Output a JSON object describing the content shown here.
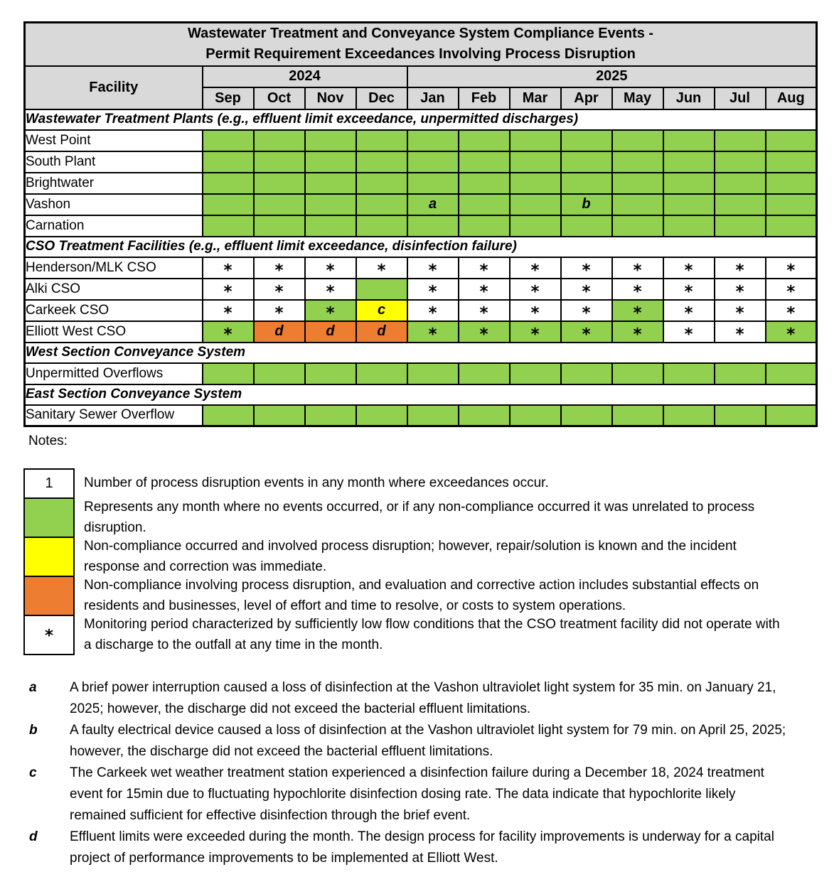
{
  "colors": {
    "green": "#92D050",
    "yellow": "#FFFF00",
    "orange": "#ED7D31",
    "white": "#FFFFFF",
    "header_bg": "#D9D9D9",
    "border": "#000000"
  },
  "table": {
    "title_lines": [
      "Wastewater Treatment and Conveyance System Compliance Events -",
      "Permit Requirement Exceedances Involving Process Disruption"
    ],
    "facility_header": "Facility",
    "year_groups": [
      {
        "label": "2024",
        "span": 4
      },
      {
        "label": "2025",
        "span": 8
      }
    ],
    "months": [
      "Sep",
      "Oct",
      "Nov",
      "Dec",
      "Jan",
      "Feb",
      "Mar",
      "Apr",
      "May",
      "Jun",
      "Jul",
      "Aug"
    ],
    "sections": [
      {
        "header": "Wastewater Treatment Plants (e.g., effluent limit exceedance, unpermitted discharges)",
        "rows": [
          {
            "facility": "West Point",
            "cells": [
              "green",
              "green",
              "green",
              "green",
              "green",
              "green",
              "green",
              "green",
              "green",
              "green",
              "green",
              "green"
            ]
          },
          {
            "facility": "South Plant",
            "cells": [
              "green",
              "green",
              "green",
              "green",
              "green",
              "green",
              "green",
              "green",
              "green",
              "green",
              "green",
              "green"
            ]
          },
          {
            "facility": "Brightwater",
            "cells": [
              "green",
              "green",
              "green",
              "green",
              "green",
              "green",
              "green",
              "green",
              "green",
              "green",
              "green",
              "green"
            ]
          },
          {
            "facility": "Vashon",
            "cells": [
              "green",
              "green",
              "green",
              "green",
              "green:a",
              "green",
              "green",
              "green:b",
              "green",
              "green",
              "green",
              "green"
            ]
          },
          {
            "facility": "Carnation",
            "cells": [
              "green",
              "green",
              "green",
              "green",
              "green",
              "green",
              "green",
              "green",
              "green",
              "green",
              "green",
              "green"
            ]
          }
        ]
      },
      {
        "header": "CSO Treatment Facilities (e.g., effluent limit exceedance, disinfection failure)",
        "rows": [
          {
            "facility": "Henderson/MLK CSO",
            "cells": [
              "white:*",
              "white:*",
              "white:*",
              "white:*",
              "white:*",
              "white:*",
              "white:*",
              "white:*",
              "white:*",
              "white:*",
              "white:*",
              "white:*"
            ]
          },
          {
            "facility": "Alki CSO",
            "cells": [
              "white:*",
              "white:*",
              "white:*",
              "green",
              "white:*",
              "white:*",
              "white:*",
              "white:*",
              "white:*",
              "white:*",
              "white:*",
              "white:*"
            ]
          },
          {
            "facility": "Carkeek CSO",
            "cells": [
              "white:*",
              "white:*",
              "green:*",
              "yellow:c",
              "white:*",
              "white:*",
              "white:*",
              "white:*",
              "green:*",
              "white:*",
              "white:*",
              "white:*"
            ]
          },
          {
            "facility": "Elliott West CSO",
            "cells": [
              "green:*",
              "orange:d",
              "orange:d",
              "orange:d",
              "green:*",
              "green:*",
              "green:*",
              "green:*",
              "green:*",
              "white:*",
              "white:*",
              "green:*"
            ]
          }
        ]
      },
      {
        "header": "West Section Conveyance System",
        "rows": [
          {
            "facility": "Unpermitted Overflows",
            "cells": [
              "green",
              "green",
              "green",
              "green",
              "green",
              "green",
              "green",
              "green",
              "green",
              "green",
              "green",
              "green"
            ]
          }
        ]
      },
      {
        "header": "East Section Conveyance System",
        "rows": [
          {
            "facility": "Sanitary Sewer Overflow",
            "cells": [
              "green",
              "green",
              "green",
              "green",
              "green",
              "green",
              "green",
              "green",
              "green",
              "green",
              "green",
              "green"
            ]
          }
        ]
      }
    ]
  },
  "notes_label": "Notes:",
  "legend": {
    "items": [
      {
        "swatch": "white",
        "symbol": "1",
        "text": "Number of process disruption events in any month where exceedances occur."
      },
      {
        "swatch": "green",
        "symbol": "",
        "text": "Represents any month where no events occurred, or if any non-compliance occurred it was unrelated to process disruption."
      },
      {
        "swatch": "yellow",
        "symbol": "",
        "text": "Non-compliance occurred and involved process disruption; however, repair/solution is known and the incident response and correction was immediate."
      },
      {
        "swatch": "orange",
        "symbol": "",
        "text": "Non-compliance involving process disruption, and evaluation and corrective action includes substantial effects on residents and businesses, level of effort and time to resolve, or costs to system operations."
      },
      {
        "swatch": "white",
        "symbol": "*",
        "text": "Monitoring period characterized by sufficiently low flow conditions that the CSO treatment facility did not operate with a discharge to the outfall at any time in the month."
      }
    ]
  },
  "footnotes": [
    {
      "letter": "a",
      "text": "A brief power interruption caused a loss of disinfection at the Vashon ultraviolet light system for 35 min. on January 21, 2025; however, the discharge did not exceed the bacterial effluent limitations."
    },
    {
      "letter": "b",
      "text": "A faulty electrical device caused a loss of disinfection at the Vashon ultraviolet light system for 79 min. on April 25, 2025; however, the discharge did not exceed the bacterial effluent limitations."
    },
    {
      "letter": "c",
      "text": "The Carkeek wet weather treatment station experienced a disinfection failure during a December 18, 2024 treatment event for 15min due to fluctuating hypochlorite disinfection dosing rate.  The data indicate that hypochlorite likely remained sufficient for effective disinfection through the brief event."
    },
    {
      "letter": "d",
      "text": "Effluent limits were exceeded during the month. The design process for facility improvements is underway for a capital project of performance improvements to be implemented at Elliott West."
    }
  ]
}
